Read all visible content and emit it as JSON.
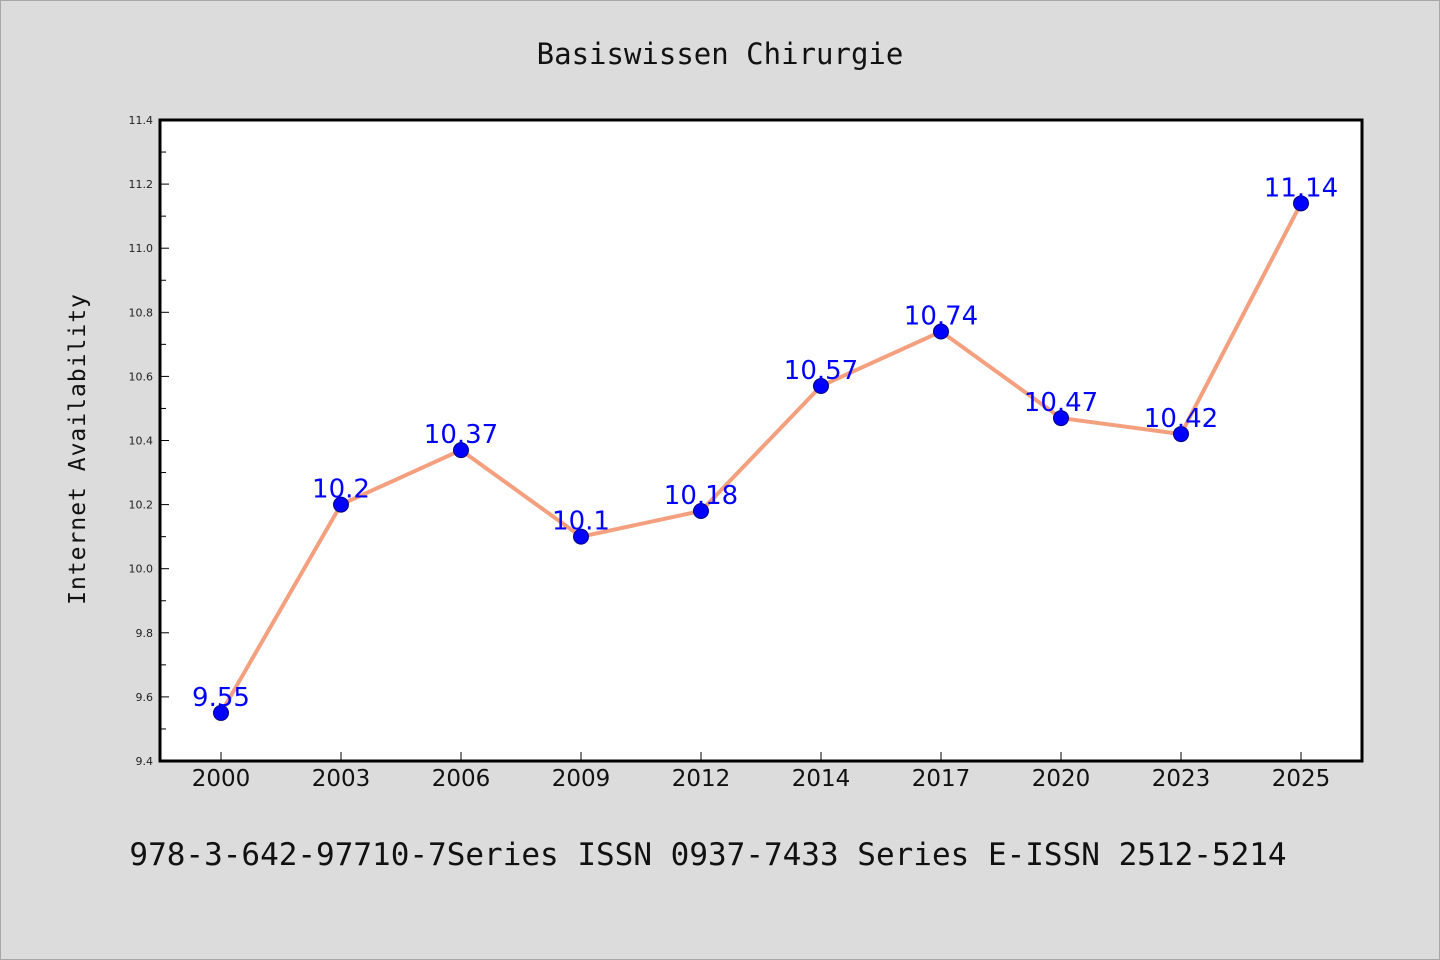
{
  "chart_data": {
    "type": "line",
    "title": "Basiswissen Chirurgie",
    "xlabel": "",
    "ylabel": "Internet Availability",
    "categories": [
      "2000",
      "2003",
      "2006",
      "2009",
      "2012",
      "2014",
      "2017",
      "2020",
      "2023",
      "2025"
    ],
    "series": [
      {
        "values": [
          9.55,
          10.2,
          10.37,
          10.1,
          10.18,
          10.57,
          10.74,
          10.47,
          10.42,
          11.14
        ],
        "labels": [
          "9.55",
          "10.2",
          "10.37",
          "10.1",
          "10.18",
          "10.57",
          "10.74",
          "10.47",
          "10.42",
          "11.14"
        ],
        "line_color": "#f4a07e",
        "marker_color": "#0000ff"
      }
    ],
    "ylim": [
      9.4,
      11.4
    ],
    "yticks": [
      "9.4",
      "9.6",
      "9.8",
      "10.0",
      "10.2",
      "10.4",
      "10.6",
      "10.8",
      "11.0",
      "11.2",
      "11.4"
    ],
    "grid": false,
    "legend": "none"
  },
  "footer": "978-3-642-97710-7Series ISSN 0937-7433 Series E-ISSN 2512-5214",
  "colors": {
    "background": "#dcdcdc",
    "plot_area": "#ffffff",
    "line": "#f4a07e",
    "marker": "#0000ff",
    "label": "#0000ff"
  }
}
